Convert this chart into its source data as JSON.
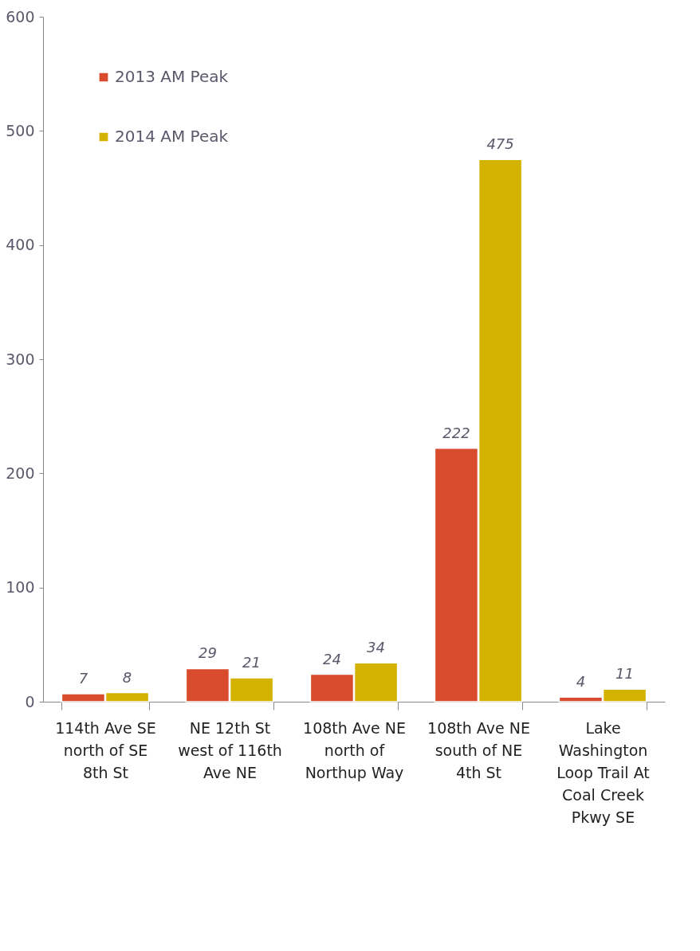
{
  "chart_data": {
    "type": "bar",
    "categories": [
      "114th Ave SE north of SE 8th St",
      "NE 12th St west of 116th Ave NE",
      "108th Ave NE north of Northup Way",
      "108th Ave NE south of NE 4th St",
      "Lake Washington Loop Trail At Coal Creek Pkwy SE"
    ],
    "series": [
      {
        "name": "2013 AM Peak",
        "color": "#d84b2c",
        "values": [
          7,
          29,
          24,
          222,
          4
        ]
      },
      {
        "name": "2014 AM Peak",
        "color": "#d4b300",
        "values": [
          8,
          21,
          34,
          475,
          11
        ]
      }
    ],
    "ylim": [
      0,
      600
    ],
    "yticks": [
      0,
      100,
      200,
      300,
      400,
      500,
      600
    ],
    "grid": false,
    "legend": "top left",
    "data_labels": true
  }
}
